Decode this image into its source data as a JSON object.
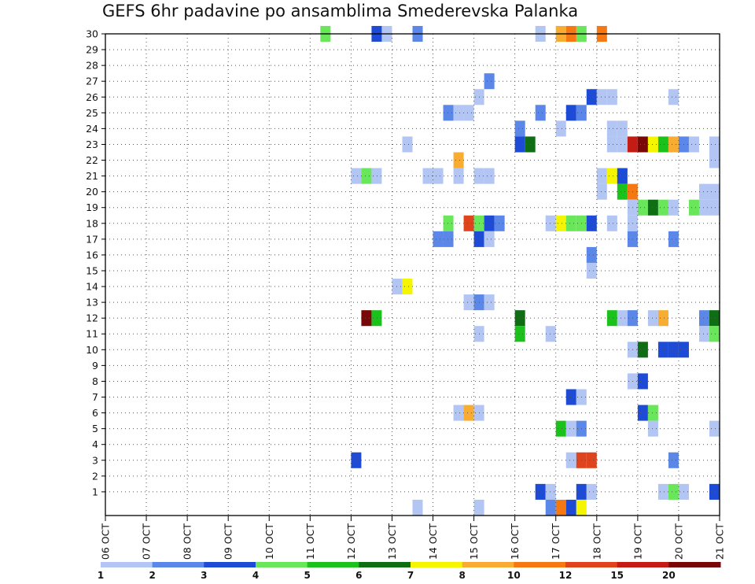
{
  "chart_data": {
    "type": "heatmap",
    "title": "GEFS 6hr padavine po ansamblima Smederevska Palanka",
    "xlabel": "",
    "ylabel": "",
    "x_tick_labels": [
      "06 OCT",
      "07 OCT",
      "08 OCT",
      "09 OCT",
      "10 OCT",
      "11 OCT",
      "12 OCT",
      "13 OCT",
      "14 OCT",
      "15 OCT",
      "16 OCT",
      "17 OCT",
      "18 OCT",
      "19 OCT",
      "20 OCT",
      "21 OCT"
    ],
    "xlim": [
      0,
      60
    ],
    "y_tick_labels": [
      "1",
      "2",
      "3",
      "4",
      "5",
      "6",
      "7",
      "8",
      "9",
      "10",
      "11",
      "12",
      "13",
      "14",
      "15",
      "16",
      "17",
      "18",
      "19",
      "20",
      "21",
      "22",
      "23",
      "24",
      "25",
      "26",
      "27",
      "28",
      "29",
      "30"
    ],
    "ylim": [
      0,
      30
    ],
    "grid": true,
    "legend": {
      "placement": "bottom",
      "bounds": [
        "1",
        "2",
        "3",
        "4",
        "5",
        "6",
        "7",
        "8",
        "10",
        "12",
        "15",
        "20"
      ],
      "colors": [
        "#b3c6f3",
        "#5a87e8",
        "#1d4bd6",
        "#6ae65a",
        "#1cc21c",
        "#0f6e14",
        "#f5f500",
        "#f8ac32",
        "#f57812",
        "#e0441c",
        "#c41c14",
        "#780808"
      ]
    },
    "cell_columns": "x = 6-hour step index from 06 OCT 00Z, y = member row, v = color class index",
    "cells": [
      {
        "x": 21,
        "y": 30,
        "v": 3
      },
      {
        "x": 26,
        "y": 30,
        "v": 2
      },
      {
        "x": 27,
        "y": 30,
        "v": 0
      },
      {
        "x": 42,
        "y": 30,
        "v": 0
      },
      {
        "x": 44,
        "y": 30,
        "v": 7
      },
      {
        "x": 48,
        "y": 30,
        "v": 8
      },
      {
        "x": 46,
        "y": 30,
        "v": 3
      },
      {
        "x": 30,
        "y": 30,
        "v": 1
      },
      {
        "x": 45,
        "y": 30,
        "v": 8
      },
      {
        "x": 37,
        "y": 27,
        "v": 1
      },
      {
        "x": 36,
        "y": 26,
        "v": 0
      },
      {
        "x": 47,
        "y": 26,
        "v": 2
      },
      {
        "x": 48,
        "y": 26,
        "v": 0
      },
      {
        "x": 49,
        "y": 26,
        "v": 0
      },
      {
        "x": 55,
        "y": 26,
        "v": 0
      },
      {
        "x": 33,
        "y": 25,
        "v": 1
      },
      {
        "x": 34,
        "y": 25,
        "v": 0
      },
      {
        "x": 35,
        "y": 25,
        "v": 0
      },
      {
        "x": 42,
        "y": 25,
        "v": 1
      },
      {
        "x": 45,
        "y": 25,
        "v": 2
      },
      {
        "x": 46,
        "y": 25,
        "v": 1
      },
      {
        "x": 40,
        "y": 24,
        "v": 1
      },
      {
        "x": 44,
        "y": 24,
        "v": 0
      },
      {
        "x": 49,
        "y": 24,
        "v": 0
      },
      {
        "x": 50,
        "y": 24,
        "v": 0
      },
      {
        "x": 29,
        "y": 23,
        "v": 0
      },
      {
        "x": 40,
        "y": 23,
        "v": 2
      },
      {
        "x": 41,
        "y": 23,
        "v": 5
      },
      {
        "x": 49,
        "y": 23,
        "v": 0
      },
      {
        "x": 50,
        "y": 23,
        "v": 0
      },
      {
        "x": 51,
        "y": 23,
        "v": 10
      },
      {
        "x": 52,
        "y": 23,
        "v": 11
      },
      {
        "x": 53,
        "y": 23,
        "v": 6
      },
      {
        "x": 54,
        "y": 23,
        "v": 4
      },
      {
        "x": 55,
        "y": 23,
        "v": 7
      },
      {
        "x": 56,
        "y": 23,
        "v": 1
      },
      {
        "x": 57,
        "y": 23,
        "v": 0
      },
      {
        "x": 59,
        "y": 23,
        "v": 0
      },
      {
        "x": 34,
        "y": 22,
        "v": 7
      },
      {
        "x": 59,
        "y": 22,
        "v": 0
      },
      {
        "x": 24,
        "y": 21,
        "v": 0
      },
      {
        "x": 25,
        "y": 21,
        "v": 3
      },
      {
        "x": 26,
        "y": 21,
        "v": 0
      },
      {
        "x": 31,
        "y": 21,
        "v": 0
      },
      {
        "x": 32,
        "y": 21,
        "v": 0
      },
      {
        "x": 34,
        "y": 21,
        "v": 0
      },
      {
        "x": 36,
        "y": 21,
        "v": 0
      },
      {
        "x": 37,
        "y": 21,
        "v": 0
      },
      {
        "x": 48,
        "y": 21,
        "v": 0
      },
      {
        "x": 49,
        "y": 21,
        "v": 6
      },
      {
        "x": 50,
        "y": 21,
        "v": 2
      },
      {
        "x": 48,
        "y": 20,
        "v": 0
      },
      {
        "x": 50,
        "y": 20,
        "v": 4
      },
      {
        "x": 51,
        "y": 20,
        "v": 8
      },
      {
        "x": 58,
        "y": 20,
        "v": 0
      },
      {
        "x": 59,
        "y": 20,
        "v": 0
      },
      {
        "x": 51,
        "y": 19,
        "v": 0
      },
      {
        "x": 52,
        "y": 19,
        "v": 3
      },
      {
        "x": 53,
        "y": 19,
        "v": 5
      },
      {
        "x": 54,
        "y": 19,
        "v": 3
      },
      {
        "x": 55,
        "y": 19,
        "v": 0
      },
      {
        "x": 57,
        "y": 19,
        "v": 3
      },
      {
        "x": 58,
        "y": 19,
        "v": 0
      },
      {
        "x": 59,
        "y": 19,
        "v": 0
      },
      {
        "x": 33,
        "y": 18,
        "v": 3
      },
      {
        "x": 35,
        "y": 18,
        "v": 9
      },
      {
        "x": 36,
        "y": 18,
        "v": 3
      },
      {
        "x": 37,
        "y": 18,
        "v": 2
      },
      {
        "x": 38,
        "y": 18,
        "v": 1
      },
      {
        "x": 43,
        "y": 18,
        "v": 0
      },
      {
        "x": 44,
        "y": 18,
        "v": 6
      },
      {
        "x": 45,
        "y": 18,
        "v": 3
      },
      {
        "x": 46,
        "y": 18,
        "v": 3
      },
      {
        "x": 47,
        "y": 18,
        "v": 2
      },
      {
        "x": 49,
        "y": 18,
        "v": 0
      },
      {
        "x": 51,
        "y": 18,
        "v": 0
      },
      {
        "x": 32,
        "y": 17,
        "v": 1
      },
      {
        "x": 33,
        "y": 17,
        "v": 1
      },
      {
        "x": 36,
        "y": 17,
        "v": 2
      },
      {
        "x": 37,
        "y": 17,
        "v": 0
      },
      {
        "x": 51,
        "y": 17,
        "v": 1
      },
      {
        "x": 55,
        "y": 17,
        "v": 1
      },
      {
        "x": 47,
        "y": 16,
        "v": 1
      },
      {
        "x": 47,
        "y": 15,
        "v": 0
      },
      {
        "x": 28,
        "y": 14,
        "v": 0
      },
      {
        "x": 29,
        "y": 14,
        "v": 6
      },
      {
        "x": 35,
        "y": 13,
        "v": 0
      },
      {
        "x": 36,
        "y": 13,
        "v": 1
      },
      {
        "x": 37,
        "y": 13,
        "v": 0
      },
      {
        "x": 25,
        "y": 12,
        "v": 11
      },
      {
        "x": 26,
        "y": 12,
        "v": 4
      },
      {
        "x": 40,
        "y": 12,
        "v": 5
      },
      {
        "x": 49,
        "y": 12,
        "v": 4
      },
      {
        "x": 50,
        "y": 12,
        "v": 0
      },
      {
        "x": 51,
        "y": 12,
        "v": 1
      },
      {
        "x": 53,
        "y": 12,
        "v": 0
      },
      {
        "x": 54,
        "y": 12,
        "v": 7
      },
      {
        "x": 58,
        "y": 12,
        "v": 1
      },
      {
        "x": 59,
        "y": 12,
        "v": 5
      },
      {
        "x": 36,
        "y": 11,
        "v": 0
      },
      {
        "x": 40,
        "y": 11,
        "v": 4
      },
      {
        "x": 43,
        "y": 11,
        "v": 0
      },
      {
        "x": 58,
        "y": 11,
        "v": 0
      },
      {
        "x": 59,
        "y": 11,
        "v": 3
      },
      {
        "x": 51,
        "y": 10,
        "v": 0
      },
      {
        "x": 52,
        "y": 10,
        "v": 5
      },
      {
        "x": 54,
        "y": 10,
        "v": 2
      },
      {
        "x": 55,
        "y": 10,
        "v": 2
      },
      {
        "x": 56,
        "y": 10,
        "v": 2
      },
      {
        "x": 51,
        "y": 8,
        "v": 0
      },
      {
        "x": 52,
        "y": 8,
        "v": 2
      },
      {
        "x": 45,
        "y": 7,
        "v": 2
      },
      {
        "x": 46,
        "y": 7,
        "v": 0
      },
      {
        "x": 34,
        "y": 6,
        "v": 0
      },
      {
        "x": 35,
        "y": 6,
        "v": 7
      },
      {
        "x": 36,
        "y": 6,
        "v": 0
      },
      {
        "x": 52,
        "y": 6,
        "v": 2
      },
      {
        "x": 53,
        "y": 6,
        "v": 3
      },
      {
        "x": 44,
        "y": 5,
        "v": 4
      },
      {
        "x": 45,
        "y": 5,
        "v": 0
      },
      {
        "x": 46,
        "y": 5,
        "v": 1
      },
      {
        "x": 53,
        "y": 5,
        "v": 0
      },
      {
        "x": 59,
        "y": 5,
        "v": 0
      },
      {
        "x": 24,
        "y": 3,
        "v": 2
      },
      {
        "x": 45,
        "y": 3,
        "v": 0
      },
      {
        "x": 46,
        "y": 3,
        "v": 9
      },
      {
        "x": 47,
        "y": 3,
        "v": 9
      },
      {
        "x": 55,
        "y": 3,
        "v": 1
      },
      {
        "x": 42,
        "y": 1,
        "v": 2
      },
      {
        "x": 43,
        "y": 1,
        "v": 0
      },
      {
        "x": 46,
        "y": 1,
        "v": 2
      },
      {
        "x": 47,
        "y": 1,
        "v": 0
      },
      {
        "x": 54,
        "y": 1,
        "v": 0
      },
      {
        "x": 55,
        "y": 1,
        "v": 3
      },
      {
        "x": 56,
        "y": 1,
        "v": 0
      },
      {
        "x": 59,
        "y": 1,
        "v": 2
      },
      {
        "x": 30,
        "y": 0,
        "v": 0
      },
      {
        "x": 36,
        "y": 0,
        "v": 0
      },
      {
        "x": 43,
        "y": 0,
        "v": 1
      },
      {
        "x": 44,
        "y": 0,
        "v": 8
      },
      {
        "x": 45,
        "y": 0,
        "v": 2
      },
      {
        "x": 46,
        "y": 0,
        "v": 6
      }
    ]
  }
}
